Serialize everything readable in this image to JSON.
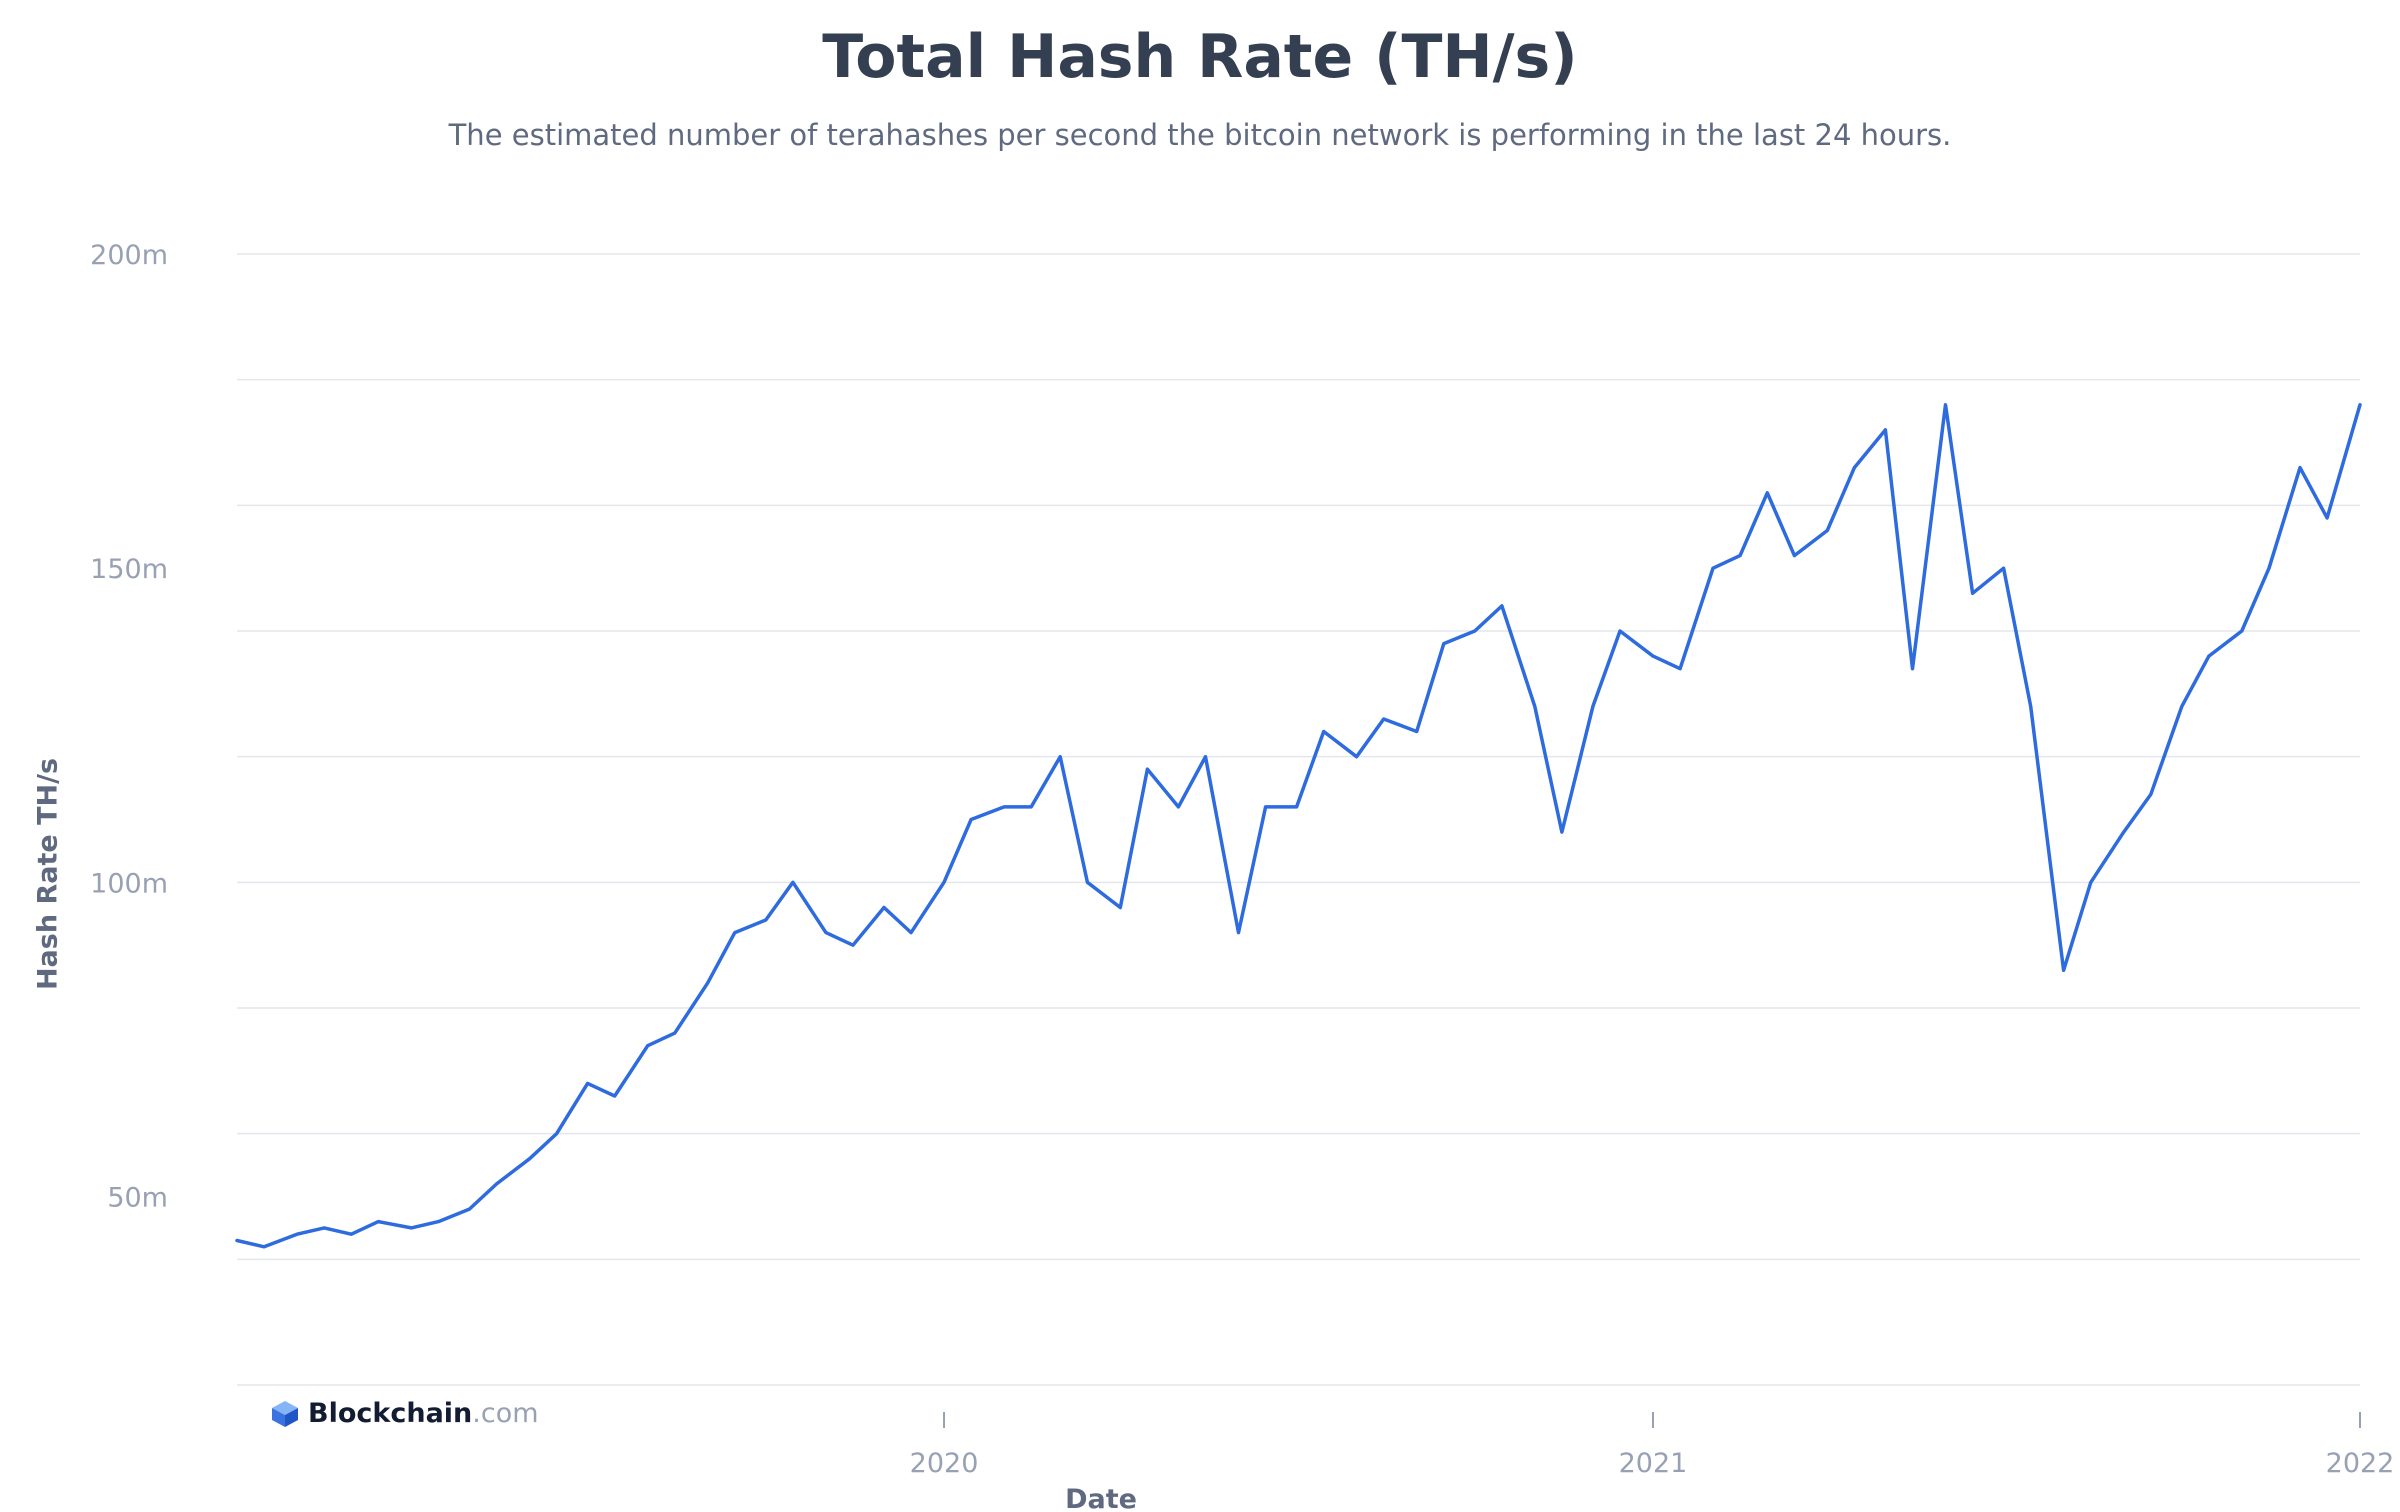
{
  "header": {
    "title": "Total Hash Rate (TH/s)",
    "subtitle": "The estimated number of terahashes per second the bitcoin network is performing in the last 24 hours."
  },
  "brand": {
    "name": "Blockchain",
    "domain": ".com"
  },
  "colors": {
    "line": "#2d6bdf",
    "grid": "#e3e6ec",
    "tick": "#98a1b3"
  },
  "chart_data": {
    "type": "line",
    "title": "Total Hash Rate (TH/s)",
    "xlabel": "Date",
    "ylabel": "Hash Rate TH/s",
    "yticks": [
      {
        "value": 50000000,
        "label": "50m"
      },
      {
        "value": 100000000,
        "label": "100m"
      },
      {
        "value": 150000000,
        "label": "150m"
      },
      {
        "value": 200000000,
        "label": "200m"
      }
    ],
    "xticks": [
      {
        "value": "2020-01-01",
        "label": "2020"
      },
      {
        "value": "2021-01-01",
        "label": "2021"
      },
      {
        "value": "2022-01-01",
        "label": "2022"
      }
    ],
    "xlim": [
      "2019-01-01",
      "2022-01-01"
    ],
    "ylim": [
      20000000,
      200000000
    ],
    "grid": true,
    "legend": "none",
    "series": [
      {
        "x": [
          "2019-01-01",
          "2019-01-15",
          "2019-02-01",
          "2019-02-15",
          "2019-03-01",
          "2019-03-15",
          "2019-04-01",
          "2019-04-15",
          "2019-05-01",
          "2019-05-15",
          "2019-06-01",
          "2019-06-15",
          "2019-07-01",
          "2019-07-15",
          "2019-08-01",
          "2019-08-15",
          "2019-09-01",
          "2019-09-15",
          "2019-10-01",
          "2019-10-15",
          "2019-11-01",
          "2019-11-15",
          "2019-12-01",
          "2019-12-15",
          "2020-01-01",
          "2020-01-15",
          "2020-02-01",
          "2020-02-15",
          "2020-03-01",
          "2020-03-15",
          "2020-04-01",
          "2020-04-15",
          "2020-05-01",
          "2020-05-15",
          "2020-06-01",
          "2020-06-15",
          "2020-07-01",
          "2020-07-15",
          "2020-08-01",
          "2020-08-15",
          "2020-09-01",
          "2020-09-15",
          "2020-10-01",
          "2020-10-15",
          "2020-11-01",
          "2020-11-15",
          "2020-12-01",
          "2020-12-15",
          "2021-01-01",
          "2021-01-15",
          "2021-02-01",
          "2021-02-15",
          "2021-03-01",
          "2021-03-15",
          "2021-04-01",
          "2021-04-15",
          "2021-05-01",
          "2021-05-15",
          "2021-06-01",
          "2021-06-15",
          "2021-07-01",
          "2021-07-15",
          "2021-08-01",
          "2021-08-15",
          "2021-09-01",
          "2021-09-15",
          "2021-10-01",
          "2021-10-15",
          "2021-11-01",
          "2021-11-15",
          "2021-12-01",
          "2021-12-15",
          "2022-01-01"
        ],
        "values": [
          43000000,
          42000000,
          44000000,
          45000000,
          44000000,
          46000000,
          45000000,
          46000000,
          48000000,
          52000000,
          56000000,
          60000000,
          68000000,
          66000000,
          74000000,
          76000000,
          84000000,
          92000000,
          94000000,
          100000000,
          92000000,
          90000000,
          96000000,
          92000000,
          100000000,
          110000000,
          112000000,
          112000000,
          120000000,
          100000000,
          96000000,
          118000000,
          112000000,
          120000000,
          92000000,
          112000000,
          112000000,
          124000000,
          120000000,
          126000000,
          124000000,
          138000000,
          140000000,
          144000000,
          128000000,
          108000000,
          128000000,
          140000000,
          136000000,
          134000000,
          150000000,
          152000000,
          162000000,
          152000000,
          156000000,
          166000000,
          172000000,
          134000000,
          176000000,
          146000000,
          150000000,
          128000000,
          86000000,
          100000000,
          108000000,
          114000000,
          128000000,
          136000000,
          140000000,
          150000000,
          166000000,
          158000000,
          176000000
        ]
      }
    ]
  }
}
